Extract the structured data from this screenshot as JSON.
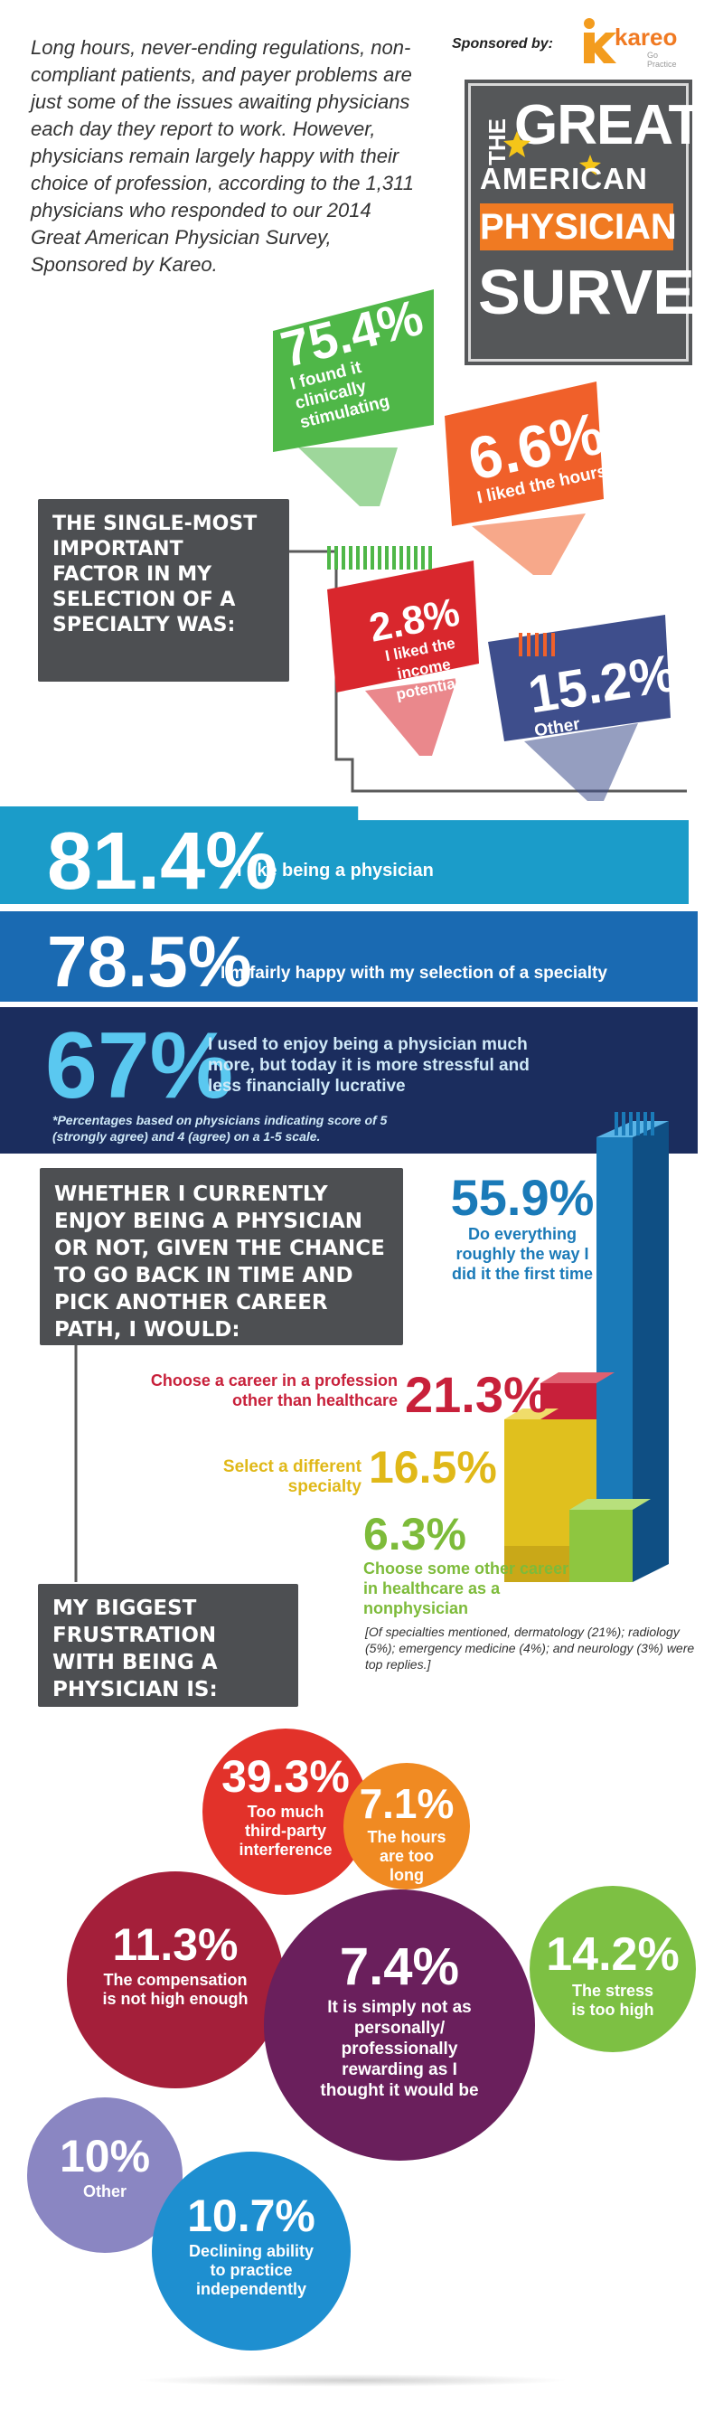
{
  "intro": "Long hours, never-ending regulations, non-compliant patients, and payer problems are just some of the issues awaiting physicians each day they report to work. However, physicians remain largely happy with their choice of profession, according to the 1,311 physicians who responded to our 2014 Great American Physician Survey, Sponsored by Kareo.",
  "sponsor": {
    "label": "Sponsored by:",
    "brand": "kareo",
    "tagline": "Go Practice"
  },
  "logo": {
    "the": "THE",
    "great": "GREAT",
    "american": "AMERICAN",
    "physician": "PHYSICIAN",
    "survey": "SURVEY"
  },
  "specialty": {
    "heading": "THE SINGLE-MOST IMPORTANT FACTOR IN MY SELECTION OF A SPECIALTY WAS:",
    "items": [
      {
        "pct": "75.4%",
        "label": "I found it clinically stimulating",
        "color": "#4fb748"
      },
      {
        "pct": "6.6%",
        "label": "I liked the hours",
        "color": "#f0602a"
      },
      {
        "pct": "2.8%",
        "label": "I liked the income potential",
        "color": "#d9272d"
      },
      {
        "pct": "15.2%",
        "label": "Other",
        "color": "#3e4e8c"
      }
    ]
  },
  "happiness": [
    {
      "pct": "81.4%",
      "label": "I like being a physician",
      "color": "#1b9cc9"
    },
    {
      "pct": "78.5%",
      "label": "I'm fairly happy with my selection of a specialty",
      "color": "#1a6ab2"
    },
    {
      "pct": "67%",
      "label": "I used to enjoy being a physician much more, but today it is more stressful and less financially lucrative",
      "color": "#1b2d5e"
    }
  ],
  "happiness_note": "*Percentages based on physicians indicating score of 5 (strongly agree) and 4 (agree) on a 1-5 scale.",
  "career": {
    "heading": "WHETHER I CURRENTLY ENJOY BEING A PHYSICIAN OR NOT, GIVEN THE CHANCE TO GO BACK IN TIME AND PICK ANOTHER CAREER PATH, I WOULD:",
    "items": [
      {
        "pct": "55.9%",
        "label": "Do everything roughly the way I did it the first time",
        "color": "#1a7ab8"
      },
      {
        "pct": "21.3%",
        "label": "Choose a career in a profession other than healthcare",
        "color": "#c8203a"
      },
      {
        "pct": "16.5%",
        "label": "Select a different specialty",
        "color": "#e0c01e"
      },
      {
        "pct": "6.3%",
        "label": "Choose some other career in healthcare as a nonphysician",
        "color": "#8ec640"
      }
    ],
    "note": "[Of specialties mentioned, dermatology (21%); radiology (5%); emergency medicine (4%); and neurology (3%) were top replies.]"
  },
  "frustration": {
    "heading": "MY BIGGEST FRUSTRATION WITH BEING A PHYSICIAN IS:",
    "items": [
      {
        "pct": "39.3%",
        "label": "Too much third-party interference",
        "color": "#e2322a"
      },
      {
        "pct": "7.1%",
        "label": "The hours are too long",
        "color": "#f08a22"
      },
      {
        "pct": "11.3%",
        "label": "The compensation is not high enough",
        "color": "#a41f3a"
      },
      {
        "pct": "14.2%",
        "label": "The stress is too high",
        "color": "#7dc043"
      },
      {
        "pct": "7.4%",
        "label": "It is simply not as personally/ professionally rewarding as I thought it would be",
        "color": "#6a1f5c"
      },
      {
        "pct": "10%",
        "label": "Other",
        "color": "#8a86c2"
      },
      {
        "pct": "10.7%",
        "label": "Declining ability to practice independently",
        "color": "#1e8fd0"
      }
    ]
  }
}
